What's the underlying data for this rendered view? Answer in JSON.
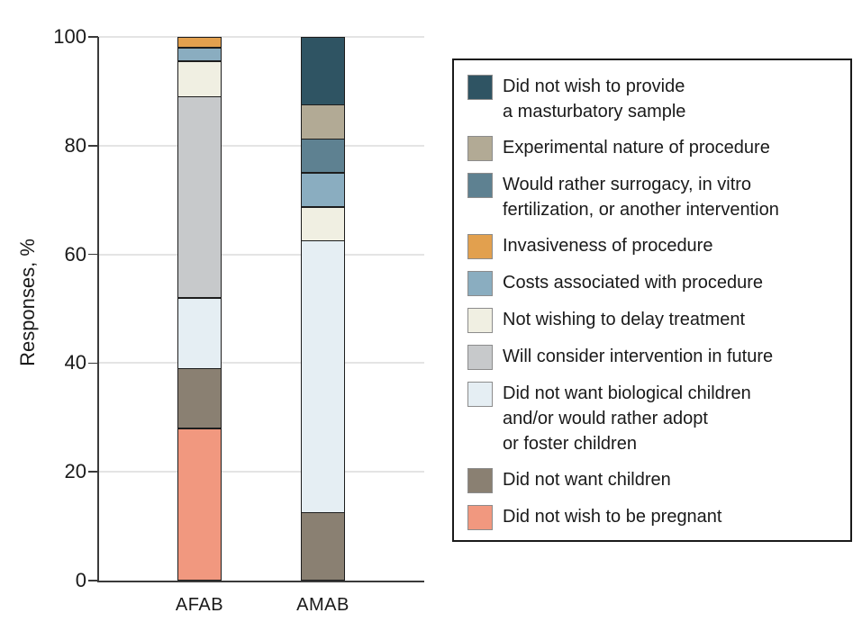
{
  "chart_data": {
    "type": "bar",
    "stacked": true,
    "orientation": "vertical",
    "title": "",
    "xlabel": "",
    "ylabel": "Responses, %",
    "ylim": [
      0,
      100
    ],
    "yticks": [
      0,
      20,
      40,
      60,
      80,
      100
    ],
    "grid": "horizontal",
    "categories": [
      "AFAB",
      "AMAB"
    ],
    "series": [
      {
        "name": "Did not wish to be pregnant",
        "color": "#F1987F",
        "values": [
          28,
          0
        ]
      },
      {
        "name": "Did not want children",
        "color": "#8A8072",
        "values": [
          11,
          12.5
        ]
      },
      {
        "name": "Did not want biological children and/or would rather adopt or foster children",
        "color": "#E5EEF3",
        "values": [
          13,
          50
        ]
      },
      {
        "name": "Will consider intervention in future",
        "color": "#C7C9CB",
        "values": [
          37,
          0
        ]
      },
      {
        "name": "Not wishing to delay treatment",
        "color": "#F0EFE2",
        "values": [
          6.5,
          6.25
        ]
      },
      {
        "name": "Costs associated with procedure",
        "color": "#8AADC0",
        "values": [
          2.5,
          6.25
        ]
      },
      {
        "name": "Would rather surrogacy, in vitro fertilization, or another intervention",
        "color": "#5E8191",
        "values": [
          0,
          6.25
        ]
      },
      {
        "name": "Invasiveness of procedure",
        "color": "#E2A04E",
        "values": [
          2,
          0
        ]
      },
      {
        "name": "Experimental nature of procedure",
        "color": "#B2AA95",
        "values": [
          0,
          6.25
        ]
      },
      {
        "name": "Did not wish to provide a masturbatory sample",
        "color": "#2F5463",
        "values": [
          0,
          12.5
        ]
      }
    ],
    "legend": {
      "position": "right",
      "items": [
        {
          "color": "#2F5463",
          "lines": [
            "Did not wish to provide",
            "a masturbatory sample"
          ]
        },
        {
          "color": "#B2AA95",
          "lines": [
            "Experimental nature of procedure"
          ]
        },
        {
          "color": "#5E8191",
          "lines": [
            "Would rather surrogacy, in vitro",
            "fertilization, or another intervention"
          ]
        },
        {
          "color": "#E2A04E",
          "lines": [
            "Invasiveness of procedure"
          ]
        },
        {
          "color": "#8AADC0",
          "lines": [
            "Costs associated with procedure"
          ]
        },
        {
          "color": "#F0EFE2",
          "lines": [
            "Not wishing to delay treatment"
          ]
        },
        {
          "color": "#C7C9CB",
          "lines": [
            "Will consider intervention in future"
          ]
        },
        {
          "color": "#E5EEF3",
          "lines": [
            "Did not want biological children",
            "and/or would rather adopt",
            "or foster children"
          ]
        },
        {
          "color": "#8A8072",
          "lines": [
            "Did not want children"
          ]
        },
        {
          "color": "#F1987F",
          "lines": [
            "Did not wish to be pregnant"
          ]
        }
      ]
    }
  },
  "colors": {
    "background": "#ffffff",
    "text": "#1a1a1a",
    "axis": "#3a3a3a",
    "gridline": "#e4e4e4",
    "bar_border": "#1d1d1d",
    "legend_border": "#1a1a1a",
    "swatch_border": "#8c8c8c"
  }
}
